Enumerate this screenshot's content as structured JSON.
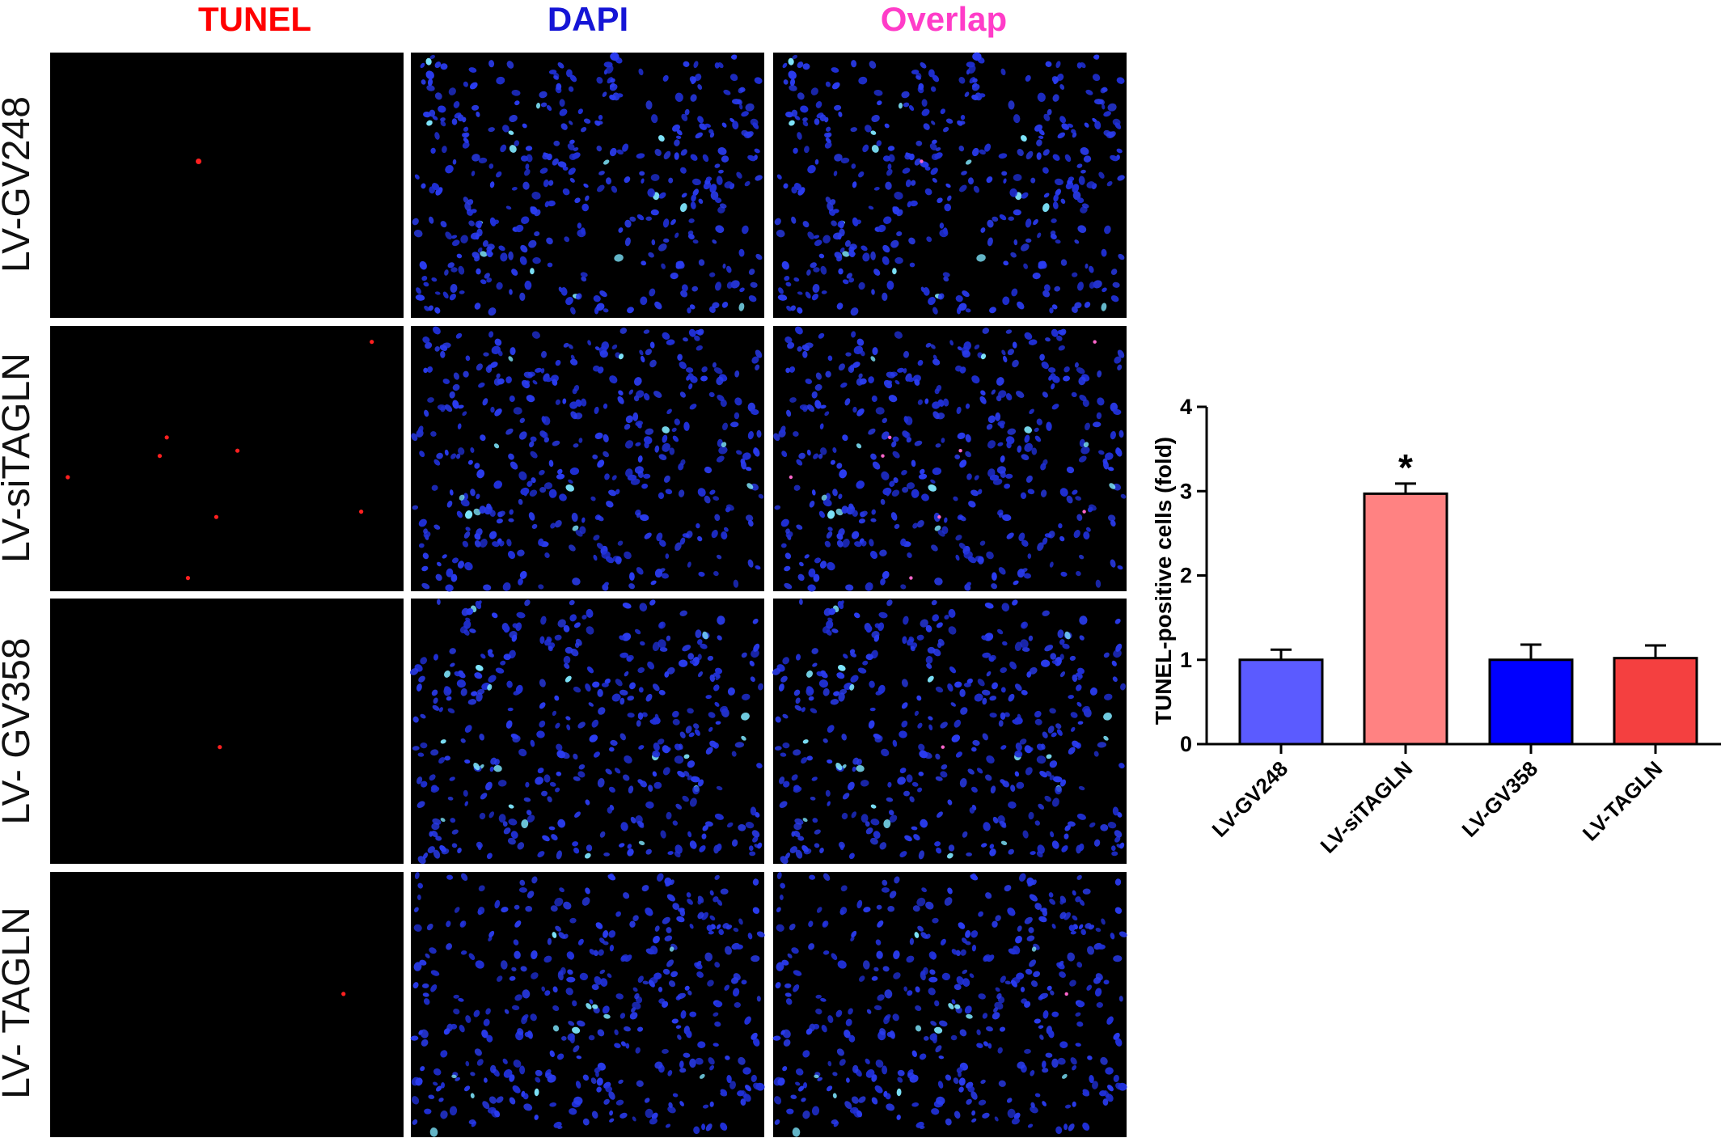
{
  "panel_headers": [
    {
      "label": "TUNEL",
      "color": "#ff0000"
    },
    {
      "label": "DAPI",
      "color": "#1515d6"
    },
    {
      "label": "Overlap",
      "color": "#ff3cc8"
    }
  ],
  "row_labels": [
    "LV-GV248",
    "LV-siTAGLN",
    "LV- GV358",
    "LV- TAGLN"
  ],
  "micrograph_colors": {
    "background": "#000000",
    "nucleus": "#2a3cf0",
    "tunel_spot": "#ff2020",
    "bright_nucleus": "#7fe8ff"
  },
  "tunel_positive_spot_counts": [
    1,
    8,
    1,
    1
  ],
  "chart_data": {
    "type": "bar",
    "categories": [
      "LV-GV248",
      "LV-siTAGLN",
      "LV-GV358",
      "LV-TAGLN"
    ],
    "values": [
      1.0,
      2.97,
      1.0,
      1.02
    ],
    "errors": [
      0.12,
      0.12,
      0.18,
      0.15
    ],
    "bar_colors": [
      "#5b5bff",
      "#ff8282",
      "#0000ff",
      "#f44040"
    ],
    "significance": [
      "",
      "*",
      "",
      ""
    ],
    "ylabel": "TUNEL-positive cells (fold)",
    "xlabel": "",
    "ylim": [
      0,
      4
    ],
    "yticks": [
      0,
      1,
      2,
      3,
      4
    ],
    "grid": false
  }
}
